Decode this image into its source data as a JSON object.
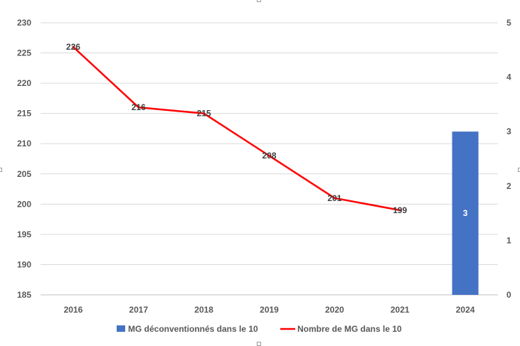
{
  "chart_data": {
    "type": "bar",
    "categories": [
      "2016",
      "2017",
      "2018",
      "2019",
      "2020",
      "2021",
      "2024"
    ],
    "series": [
      {
        "name": "MG déconventionnés dans le 10",
        "type": "bar",
        "axis": "right",
        "color": "#4472C4",
        "values": [
          null,
          null,
          null,
          null,
          null,
          null,
          3
        ],
        "labels": [
          "",
          "",
          "",
          "",
          "",
          "",
          "3"
        ]
      },
      {
        "name": "Nombre de MG dans le 10",
        "type": "line",
        "axis": "left",
        "color": "#FF0000",
        "values": [
          226,
          216,
          215,
          208,
          201,
          199,
          null
        ],
        "labels": [
          "226",
          "216",
          "215",
          "208",
          "201",
          "199",
          ""
        ]
      }
    ],
    "y_left": {
      "ylim": [
        185,
        230
      ],
      "ticks": [
        "230",
        "225",
        "220",
        "215",
        "210",
        "205",
        "200",
        "195",
        "190",
        "185"
      ]
    },
    "y_right": {
      "ylim": [
        0,
        5
      ],
      "ticks": [
        "5",
        "4",
        "3",
        "2",
        "1",
        "0"
      ]
    },
    "grid": true,
    "legend": "bottom"
  }
}
